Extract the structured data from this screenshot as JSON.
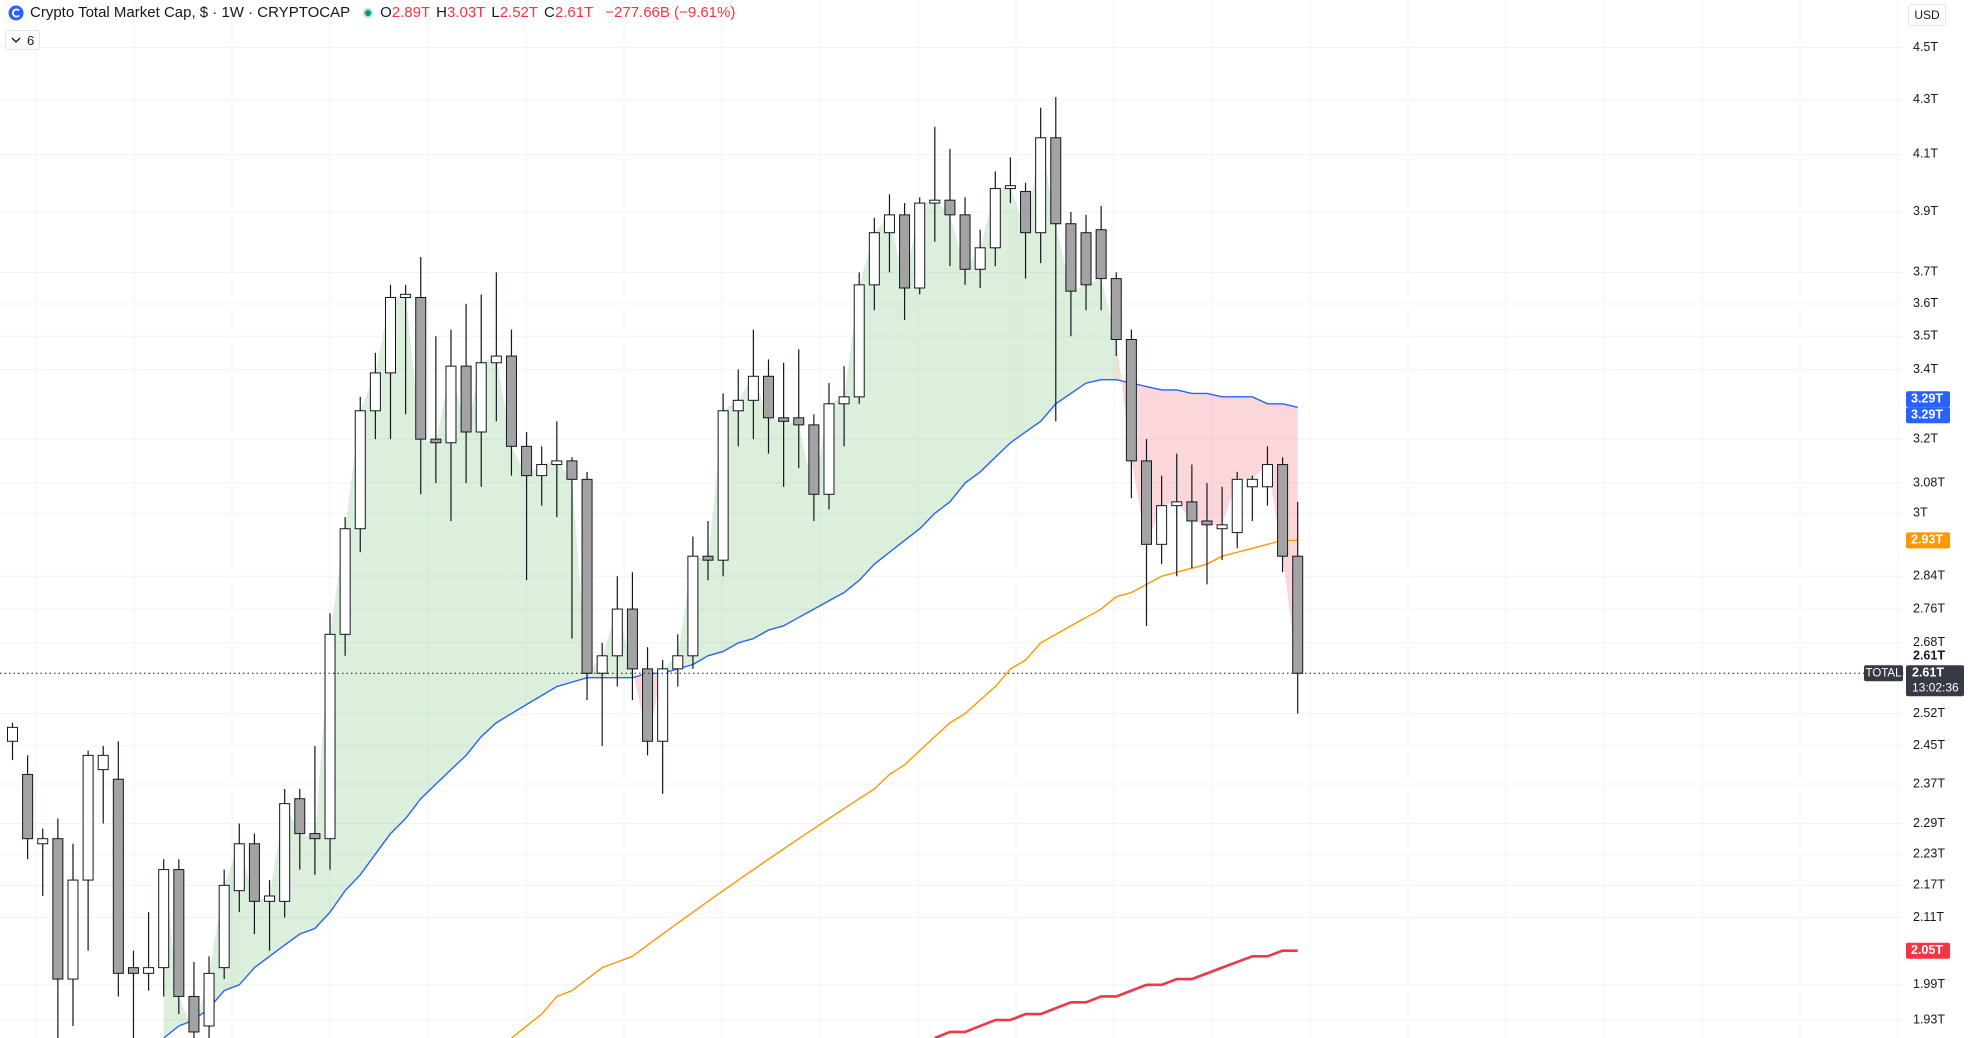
{
  "header": {
    "title": "Crypto Total Market Cap, $ · 1W · CRYPTOCAP",
    "ohlc": [
      {
        "key": "O",
        "value": "2.89T"
      },
      {
        "key": "H",
        "value": "3.03T"
      },
      {
        "key": "L",
        "value": "2.52T"
      },
      {
        "key": "C",
        "value": "2.61T"
      }
    ],
    "change": "−277.66B (−9.61%)",
    "indicators": "6",
    "currency": "USD"
  },
  "chart_data": {
    "type": "candlestick",
    "categories": [
      null,
      null,
      null,
      null,
      null,
      null,
      null,
      null,
      null,
      null,
      null,
      null,
      null,
      null,
      null,
      null,
      null,
      null,
      null,
      null,
      null,
      null,
      null,
      null,
      null,
      null,
      null,
      null,
      null,
      null,
      null,
      null,
      null,
      null,
      null,
      null,
      null,
      null,
      null,
      null,
      null,
      null,
      null,
      null,
      null,
      null,
      null,
      null,
      null,
      null,
      null,
      null,
      null,
      null,
      null,
      null,
      null,
      null,
      null,
      null,
      null,
      null,
      null,
      null,
      null,
      null,
      null,
      null,
      null,
      null,
      null,
      null,
      null,
      null,
      null,
      null,
      null,
      null,
      null,
      null,
      null,
      null,
      null,
      null,
      null,
      null
    ],
    "open": [
      2.46,
      2.39,
      2.25,
      2.26,
      2.0,
      2.18,
      2.4,
      2.38,
      2.02,
      2.01,
      2.02,
      2.2,
      1.97,
      1.92,
      2.02,
      2.16,
      2.25,
      2.14,
      2.14,
      2.34,
      2.27,
      2.26,
      2.7,
      2.96,
      3.28,
      3.39,
      3.62,
      3.62,
      3.2,
      3.19,
      3.41,
      3.22,
      3.42,
      3.44,
      3.18,
      3.1,
      3.13,
      3.14,
      3.09,
      2.61,
      2.65,
      2.76,
      2.62,
      2.46,
      2.62,
      2.65,
      2.89,
      2.88,
      3.28,
      3.31,
      3.38,
      3.26,
      3.26,
      3.24,
      3.05,
      3.3,
      3.32,
      3.66,
      3.83,
      3.89,
      3.65,
      3.93,
      3.94,
      3.89,
      3.71,
      3.78,
      3.98,
      3.97,
      3.83,
      4.16,
      3.86,
      3.83,
      3.84,
      3.68,
      3.49,
      3.14,
      2.92,
      3.02,
      3.03,
      2.98,
      2.96,
      2.95,
      3.07,
      3.07,
      3.13,
      2.89
    ],
    "high": [
      2.5,
      2.43,
      2.28,
      2.3,
      2.25,
      2.44,
      2.45,
      2.46,
      2.05,
      2.12,
      2.22,
      2.22,
      2.03,
      2.04,
      2.2,
      2.29,
      2.27,
      2.18,
      2.36,
      2.36,
      2.45,
      2.75,
      2.99,
      3.32,
      3.45,
      3.66,
      3.66,
      3.75,
      3.5,
      3.52,
      3.6,
      3.63,
      3.7,
      3.52,
      3.22,
      3.18,
      3.25,
      3.15,
      3.11,
      2.68,
      2.84,
      2.85,
      2.67,
      2.64,
      2.7,
      2.94,
      2.98,
      3.33,
      3.4,
      3.52,
      3.43,
      3.42,
      3.46,
      3.27,
      3.36,
      3.41,
      3.7,
      3.88,
      3.96,
      3.93,
      3.95,
      4.2,
      4.12,
      3.95,
      3.84,
      4.04,
      4.09,
      4.0,
      4.27,
      4.31,
      3.9,
      3.89,
      3.92,
      3.7,
      3.52,
      3.2,
      3.1,
      3.16,
      3.13,
      3.08,
      3.07,
      3.11,
      3.1,
      3.18,
      3.15,
      3.03
    ],
    "low": [
      2.42,
      2.22,
      2.15,
      1.9,
      1.92,
      2.05,
      2.29,
      1.97,
      1.9,
      1.98,
      1.97,
      1.94,
      1.9,
      1.9,
      2.0,
      2.12,
      2.08,
      2.05,
      2.11,
      2.2,
      2.19,
      2.2,
      2.65,
      2.9,
      3.2,
      3.2,
      3.27,
      3.05,
      3.08,
      2.98,
      3.08,
      3.07,
      3.25,
      3.1,
      2.83,
      3.02,
      2.99,
      2.69,
      2.55,
      2.45,
      2.58,
      2.55,
      2.43,
      2.35,
      2.58,
      2.62,
      2.83,
      2.84,
      3.18,
      3.2,
      3.16,
      3.07,
      3.12,
      2.98,
      3.01,
      3.18,
      3.3,
      3.58,
      3.7,
      3.55,
      3.63,
      3.8,
      3.72,
      3.66,
      3.65,
      3.72,
      3.93,
      3.68,
      3.73,
      3.25,
      3.5,
      3.58,
      3.58,
      3.44,
      3.04,
      2.72,
      2.87,
      2.84,
      2.86,
      2.82,
      2.88,
      2.91,
      2.98,
      3.02,
      2.85,
      2.52
    ],
    "close": [
      2.49,
      2.26,
      2.26,
      2.0,
      2.18,
      2.43,
      2.43,
      2.01,
      2.01,
      2.02,
      2.2,
      1.97,
      1.91,
      2.01,
      2.17,
      2.25,
      2.14,
      2.15,
      2.33,
      2.27,
      2.26,
      2.7,
      2.96,
      3.28,
      3.39,
      3.62,
      3.63,
      3.2,
      3.19,
      3.41,
      3.22,
      3.42,
      3.44,
      3.18,
      3.1,
      3.13,
      3.14,
      3.09,
      2.61,
      2.65,
      2.76,
      2.62,
      2.46,
      2.62,
      2.65,
      2.89,
      2.88,
      3.28,
      3.31,
      3.38,
      3.26,
      3.25,
      3.24,
      3.05,
      3.3,
      3.32,
      3.66,
      3.83,
      3.89,
      3.65,
      3.93,
      3.94,
      3.89,
      3.71,
      3.78,
      3.98,
      3.99,
      3.83,
      4.16,
      3.86,
      3.64,
      3.66,
      3.68,
      3.49,
      3.14,
      2.92,
      3.02,
      3.03,
      2.98,
      2.97,
      2.97,
      3.09,
      3.09,
      3.13,
      2.89,
      2.61
    ],
    "up_color": "#ffffff",
    "down_color": "#a3a3a3",
    "outline_color": "#131722",
    "lines": [
      {
        "color": "#2962ff",
        "width": 1.4,
        "values": [
          null,
          null,
          null,
          null,
          null,
          null,
          null,
          null,
          null,
          null,
          1.9,
          1.92,
          1.93,
          1.95,
          1.98,
          1.99,
          2.02,
          2.04,
          2.06,
          2.08,
          2.09,
          2.12,
          2.16,
          2.19,
          2.23,
          2.27,
          2.3,
          2.34,
          2.37,
          2.4,
          2.43,
          2.47,
          2.5,
          2.52,
          2.54,
          2.56,
          2.58,
          2.59,
          2.6,
          2.6,
          2.6,
          2.6,
          2.61,
          2.61,
          2.62,
          2.63,
          2.65,
          2.66,
          2.68,
          2.69,
          2.71,
          2.72,
          2.74,
          2.76,
          2.78,
          2.8,
          2.83,
          2.87,
          2.9,
          2.93,
          2.96,
          3.0,
          3.03,
          3.08,
          3.11,
          3.15,
          3.19,
          3.22,
          3.25,
          3.3,
          3.33,
          3.36,
          3.37,
          3.37,
          3.36,
          3.35,
          3.34,
          3.34,
          3.33,
          3.33,
          3.32,
          3.32,
          3.32,
          3.3,
          3.3,
          3.29
        ]
      },
      {
        "color": "#ff9800",
        "width": 1.4,
        "values": [
          null,
          null,
          null,
          null,
          null,
          null,
          null,
          null,
          null,
          null,
          null,
          null,
          null,
          null,
          null,
          null,
          null,
          null,
          null,
          null,
          null,
          null,
          null,
          null,
          null,
          null,
          null,
          null,
          null,
          null,
          null,
          null,
          null,
          1.9,
          1.92,
          1.94,
          1.97,
          1.98,
          2.0,
          2.02,
          2.03,
          2.04,
          2.06,
          2.08,
          2.1,
          2.12,
          2.14,
          2.16,
          2.18,
          2.2,
          2.22,
          2.24,
          2.26,
          2.28,
          2.3,
          2.32,
          2.34,
          2.36,
          2.39,
          2.41,
          2.44,
          2.47,
          2.5,
          2.52,
          2.55,
          2.58,
          2.62,
          2.64,
          2.68,
          2.7,
          2.72,
          2.74,
          2.76,
          2.79,
          2.8,
          2.82,
          2.84,
          2.85,
          2.86,
          2.87,
          2.89,
          2.9,
          2.91,
          2.92,
          2.93,
          2.93
        ]
      },
      {
        "color": "#f23645",
        "width": 2.6,
        "values": [
          null,
          null,
          null,
          null,
          null,
          null,
          null,
          null,
          null,
          null,
          null,
          null,
          null,
          null,
          null,
          null,
          null,
          null,
          null,
          null,
          null,
          null,
          null,
          null,
          null,
          null,
          null,
          null,
          null,
          null,
          null,
          null,
          null,
          null,
          null,
          null,
          null,
          null,
          null,
          null,
          null,
          null,
          null,
          null,
          null,
          null,
          null,
          null,
          null,
          null,
          null,
          null,
          null,
          null,
          null,
          null,
          null,
          null,
          null,
          null,
          null,
          1.9,
          1.91,
          1.91,
          1.92,
          1.93,
          1.93,
          1.94,
          1.94,
          1.95,
          1.96,
          1.96,
          1.97,
          1.97,
          1.98,
          1.99,
          1.99,
          2.0,
          2.0,
          2.01,
          2.02,
          2.03,
          2.04,
          2.04,
          2.05,
          2.05
        ]
      }
    ],
    "fill_up_color": "#4caf50",
    "fill_down_color": "#f23645",
    "ylim": [
      1.9,
      4.69
    ],
    "log": true,
    "grid": true,
    "yticks": [
      {
        "value": 4.5,
        "label": "4.5T"
      },
      {
        "value": 4.3,
        "label": "4.3T"
      },
      {
        "value": 4.1,
        "label": "4.1T"
      },
      {
        "value": 3.9,
        "label": "3.9T"
      },
      {
        "value": 3.7,
        "label": "3.7T"
      },
      {
        "value": 3.6,
        "label": "3.6T"
      },
      {
        "value": 3.5,
        "label": "3.5T"
      },
      {
        "value": 3.4,
        "label": "3.4T"
      },
      {
        "value": 3.2,
        "label": "3.2T"
      },
      {
        "value": 3.08,
        "label": "3.08T"
      },
      {
        "value": 3,
        "label": "3T"
      },
      {
        "value": 2.84,
        "label": "2.84T"
      },
      {
        "value": 2.76,
        "label": "2.76T"
      },
      {
        "value": 2.68,
        "label": "2.68T"
      },
      {
        "value": 2.52,
        "label": "2.52T"
      },
      {
        "value": 2.45,
        "label": "2.45T"
      },
      {
        "value": 2.37,
        "label": "2.37T"
      },
      {
        "value": 2.29,
        "label": "2.29T"
      },
      {
        "value": 2.23,
        "label": "2.23T"
      },
      {
        "value": 2.17,
        "label": "2.17T"
      },
      {
        "value": 2.11,
        "label": "2.11T"
      },
      {
        "value": 1.99,
        "label": "1.99T"
      },
      {
        "value": 1.93,
        "label": "1.93T"
      }
    ],
    "price_labels": [
      {
        "value": 3.29,
        "label": "3.29T",
        "color": "#2962ff"
      },
      {
        "value": 3.29,
        "label": "3.29T",
        "color": "#2962ff"
      },
      {
        "value": 2.93,
        "label": "2.93T",
        "color": "#ff9800"
      },
      {
        "value": 2.05,
        "label": "2.05T",
        "color": "#f23645"
      }
    ],
    "last": {
      "value": 2.61,
      "label": "2.61T",
      "above_label": "2.61T",
      "tag": "TOTAL",
      "countdown": "13:02:36",
      "color": "#363a45"
    }
  }
}
